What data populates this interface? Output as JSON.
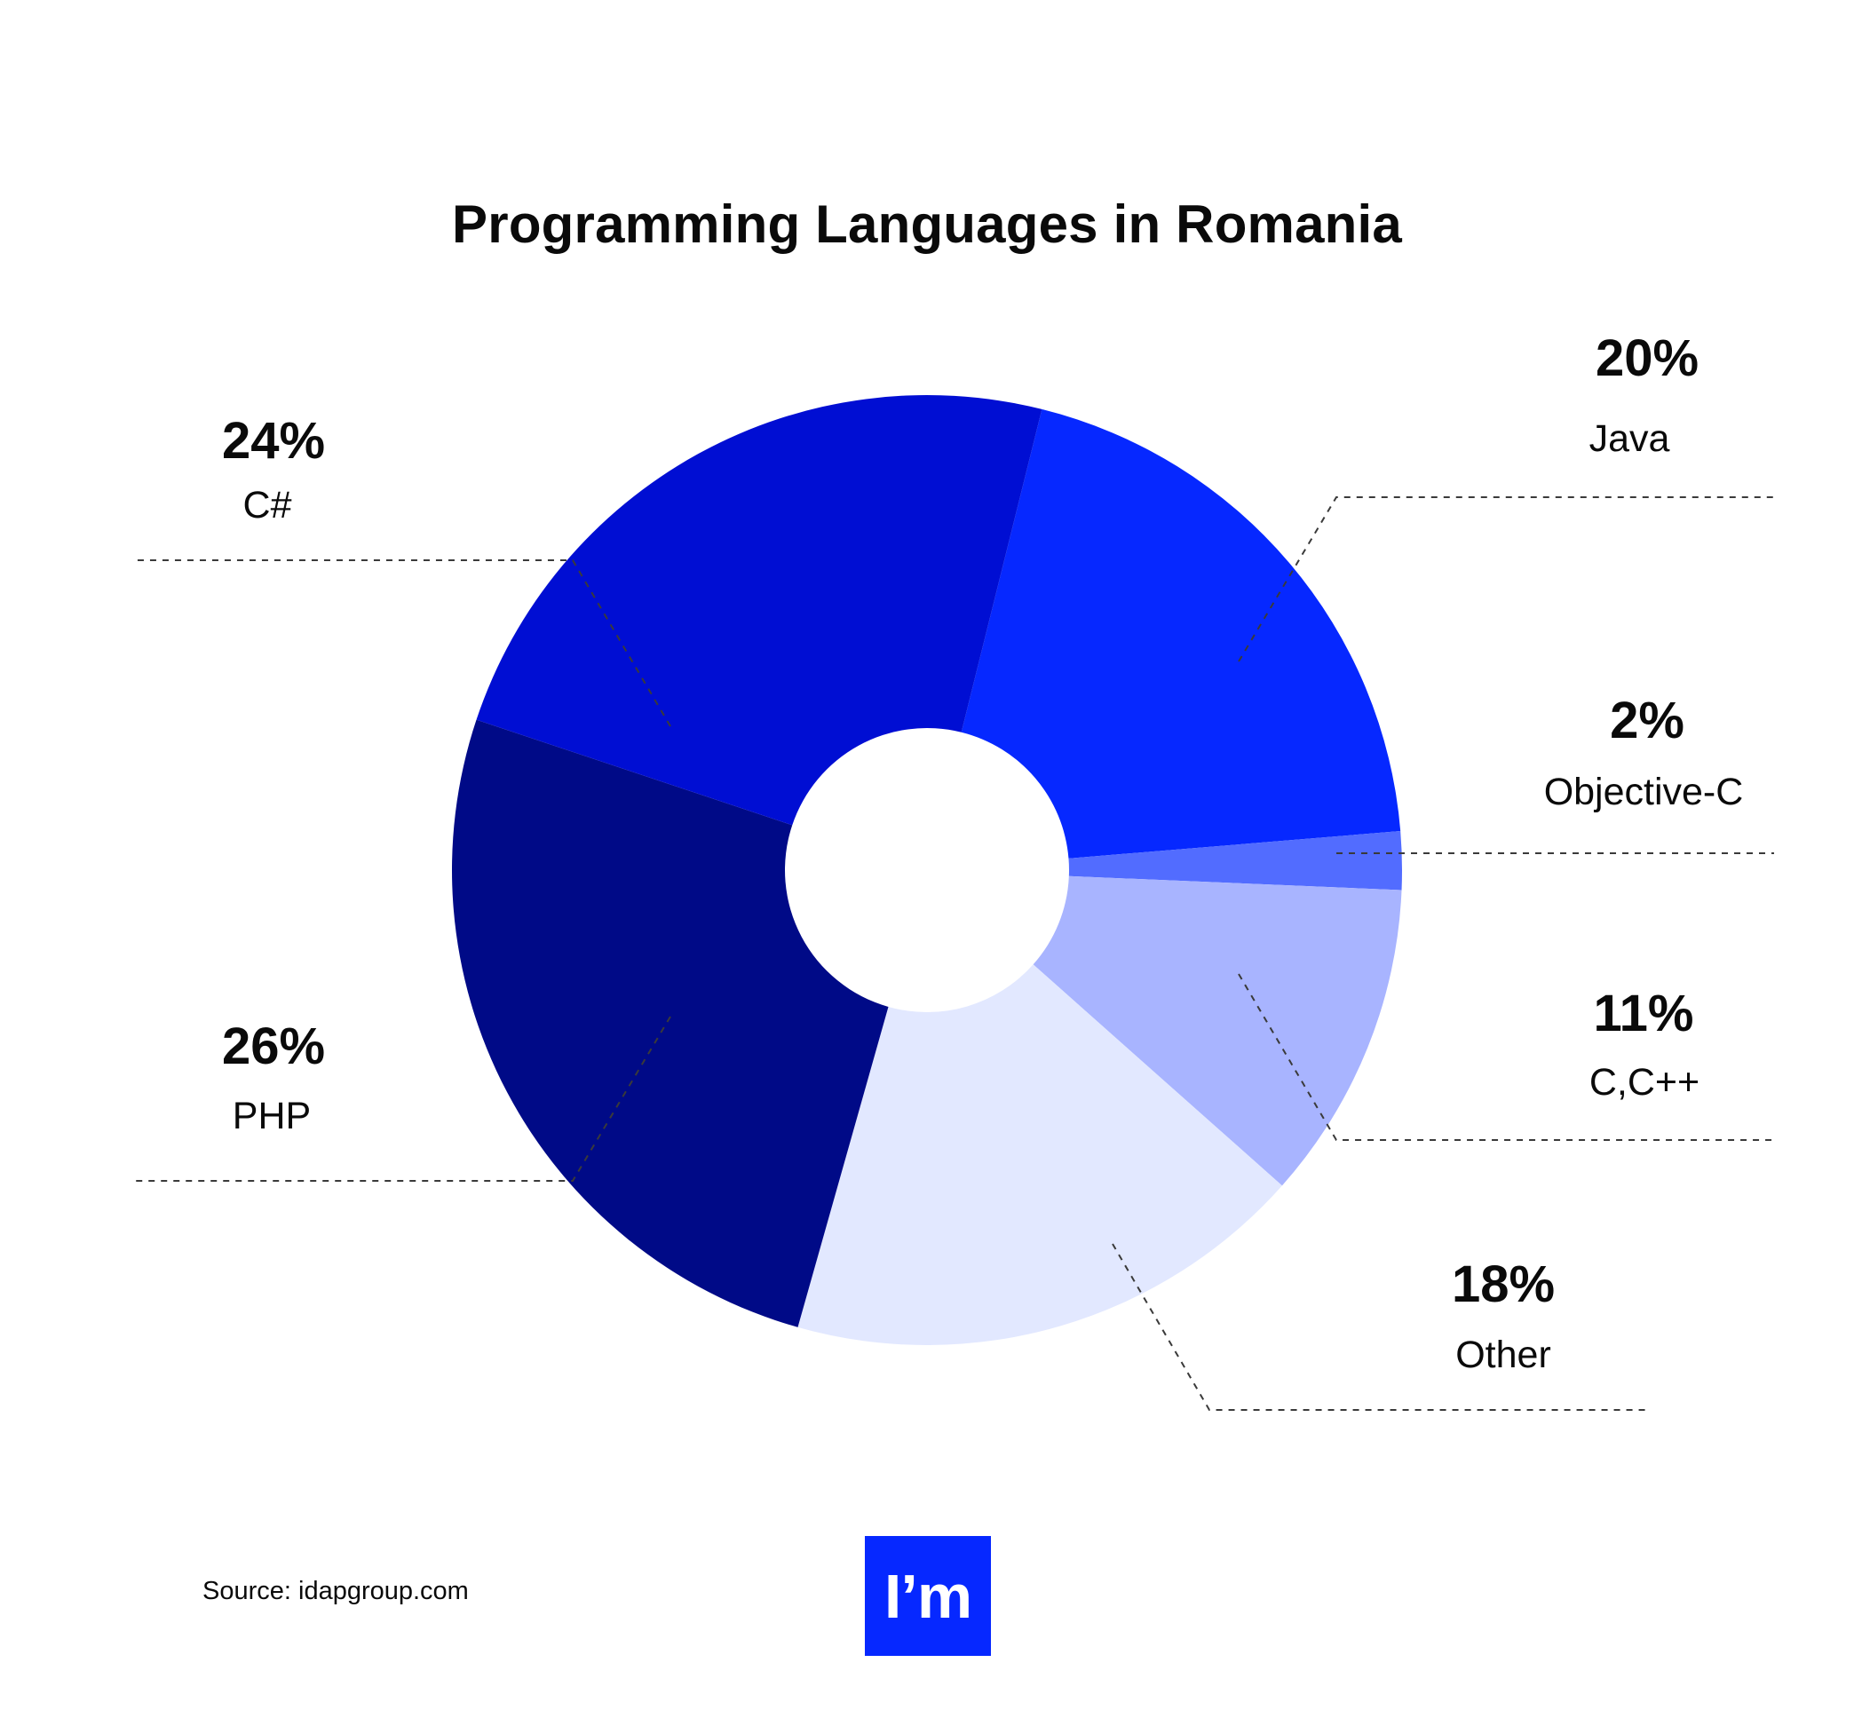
{
  "chart_data": {
    "type": "pie",
    "donut": true,
    "title": "Programming Languages in Romania",
    "source": "Source: idapgroup.com",
    "slices": [
      {
        "label": "Java",
        "value": 20,
        "value_label": "20%",
        "color": "#0628ff"
      },
      {
        "label": "Objective-C",
        "value": 2,
        "value_label": "2%",
        "color": "#526cff"
      },
      {
        "label": "C,C++",
        "value": 11,
        "value_label": "11%",
        "color": "#a8b4ff"
      },
      {
        "label": "Other",
        "value": 18,
        "value_label": "18%",
        "color": "#e2e8ff"
      },
      {
        "label": "PHP",
        "value": 26,
        "value_label": "26%",
        "color": "#000a87"
      },
      {
        "label": "C#",
        "value": 24,
        "value_label": "24%",
        "color": "#000ed3"
      }
    ]
  },
  "logo": {
    "text": "I’m",
    "color": "#0628ff"
  }
}
